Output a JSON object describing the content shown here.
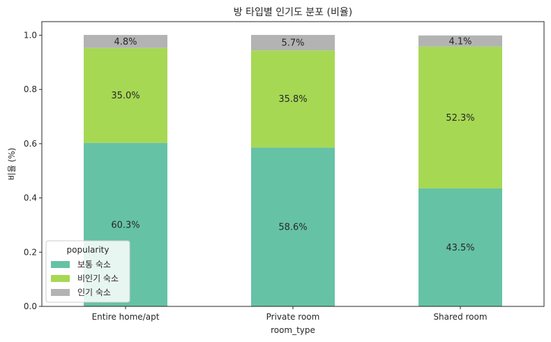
{
  "chart_data": {
    "type": "bar",
    "stacked": true,
    "title": "방 타입별 인기도 분포 (비율)",
    "xlabel": "room_type",
    "ylabel": "비율 (%)",
    "categories": [
      "Entire home/apt",
      "Private room",
      "Shared room"
    ],
    "ylim": [
      0,
      1.05
    ],
    "yticks": [
      "0.0",
      "0.2",
      "0.4",
      "0.6",
      "0.8",
      "1.0"
    ],
    "grid": false,
    "series": [
      {
        "name": "보통 숙소",
        "values": [
          0.603,
          0.586,
          0.435
        ],
        "labels": [
          "60.3%",
          "58.6%",
          "43.5%"
        ],
        "color": "#66c2a5"
      },
      {
        "name": "비인기 숙소",
        "values": [
          0.35,
          0.358,
          0.523
        ],
        "labels": [
          "35.0%",
          "35.8%",
          "52.3%"
        ],
        "color": "#a6d854"
      },
      {
        "name": "인기 숙소",
        "values": [
          0.048,
          0.057,
          0.041
        ],
        "labels": [
          "4.8%",
          "5.7%",
          "4.1%"
        ],
        "color": "#b3b3b3"
      }
    ],
    "legend": {
      "title": "popularity",
      "position": "lower-left"
    }
  }
}
